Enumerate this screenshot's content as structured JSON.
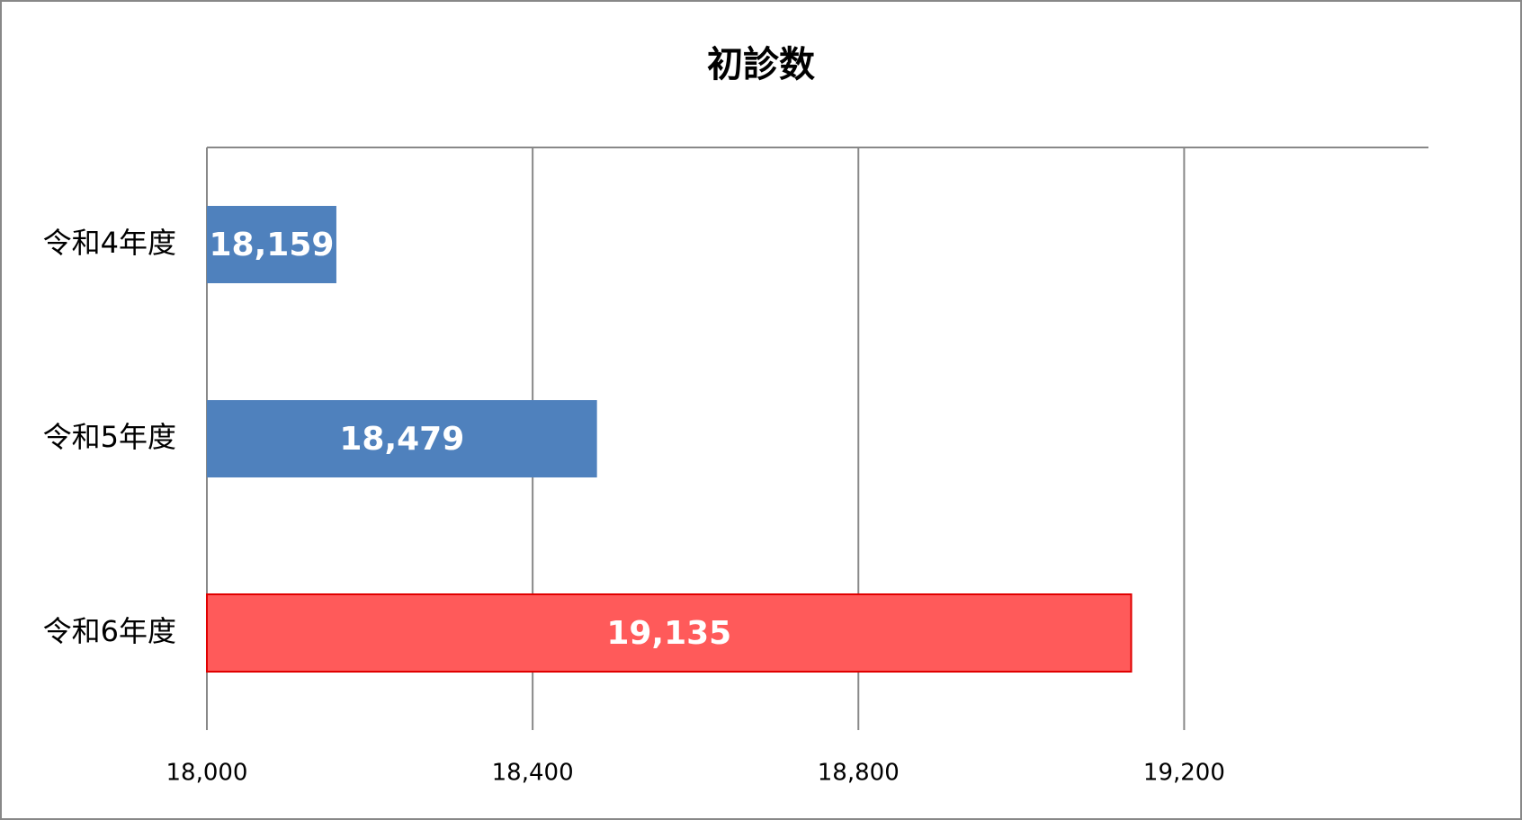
{
  "chart_data": {
    "type": "barh",
    "title": "初診数",
    "categories": [
      "令和4年度",
      "令和5年度",
      "令和6年度"
    ],
    "values": [
      18159,
      18479,
      19135
    ],
    "value_labels": [
      "18,159",
      "18,479",
      "19,135"
    ],
    "colors": [
      "#4f81bd",
      "#4f81bd",
      "#ff5a5a"
    ],
    "xlim": [
      18000,
      19500
    ],
    "xticks": [
      {
        "value": 18000,
        "label": "18,000"
      },
      {
        "value": 18400,
        "label": "18,400"
      },
      {
        "value": 18800,
        "label": "18,800"
      },
      {
        "value": 19200,
        "label": "19,200"
      }
    ],
    "grid": true
  }
}
